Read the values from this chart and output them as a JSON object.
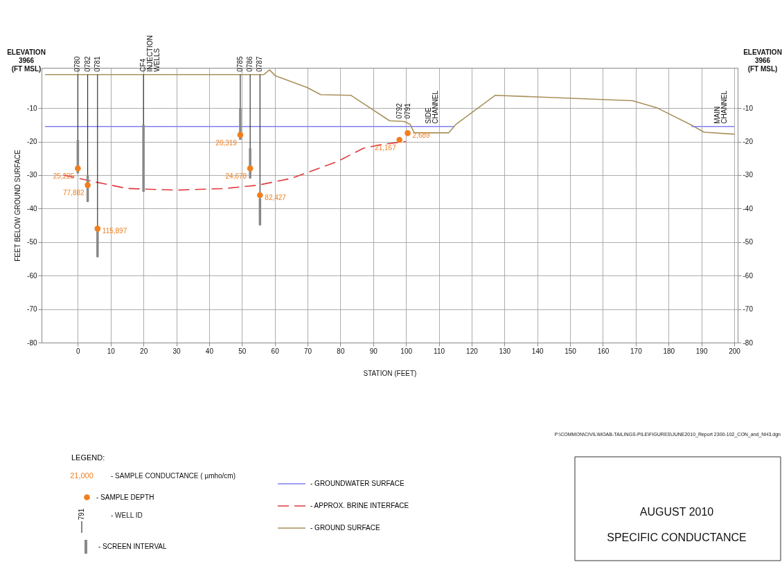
{
  "chart_data": {
    "type": "line",
    "title": "AUGUST 2010",
    "subtitle": "SPECIFIC CONDUCTANCE",
    "xlabel": "STATION (FEET)",
    "ylabel": "FEET BELOW GROUND SURFACE",
    "legend_title": "LEGEND:",
    "xlim": [
      -10,
      200
    ],
    "xticks": [
      0,
      10,
      20,
      30,
      40,
      50,
      60,
      70,
      80,
      90,
      100,
      110,
      120,
      130,
      140,
      150,
      160,
      170,
      180,
      190,
      200
    ],
    "ylim": [
      -80,
      2
    ],
    "yticks": [
      -80,
      -70,
      -60,
      -50,
      -40,
      -30,
      -20,
      -10
    ],
    "y2lim": [
      -80,
      2
    ],
    "y2ticks": [
      -80,
      -70,
      -60,
      -50,
      -40,
      -30,
      -20,
      -10
    ],
    "grid": true,
    "legend": "bottom",
    "series": [
      {
        "name": "- GROUNDWATER SURFACE",
        "color": "#7f7ff0",
        "x": [
          -10,
          114.5
        ],
        "values": [
          -15.5,
          -15.5
        ]
      },
      {
        "name": "- APPROX. BRINE INTERFACE",
        "color": "#e0393e",
        "line_style": "dashed",
        "x": [
          -4.4,
          5,
          15,
          30,
          45,
          55,
          65,
          72,
          79,
          87,
          93,
          100
        ],
        "values": [
          -30,
          -32,
          -34,
          -34.5,
          -34,
          -33,
          -31,
          -28.5,
          -26,
          -22,
          -20.8,
          -20
        ]
      },
      {
        "name": "- GROUND SURFACE",
        "color": "#a8905a",
        "x": [
          -10,
          56.7,
          58.4,
          60.2,
          69.9,
          74,
          83.2,
          95,
          99.4,
          101.3,
          102.5,
          113,
          115.3,
          127.2,
          169,
          176.6,
          187,
          190.8,
          200
        ],
        "values": [
          0,
          0,
          1.4,
          -0.4,
          -3.9,
          -6,
          -6.2,
          -13.8,
          -14,
          -14.9,
          -17.4,
          -17.4,
          -14.8,
          -6.2,
          -7.8,
          -10,
          -15.1,
          -17.2,
          -17.8
        ]
      },
      {
        "color": "#7f7ff0",
        "x": [
          187,
          200
        ],
        "values": [
          -15.5,
          -15.5
        ]
      },
      {
        "name": "- SCREEN INTERVAL",
        "type": "bar",
        "color": "#888888",
        "x": [
          0,
          3,
          6,
          20,
          49.5,
          52.5,
          55.5
        ],
        "base": [
          -29.5,
          -38,
          -54.5,
          -35,
          -19.5,
          -31,
          -45
        ],
        "values": [
          10,
          8,
          8,
          20,
          9.5,
          9,
          8
        ]
      },
      {
        "name": "- SAMPLE DEPTH",
        "type": "scatter",
        "color": "#f07f1e",
        "marker": "circle",
        "x": [
          0,
          3,
          6,
          49.5,
          52.5,
          55.5,
          98,
          100.5
        ],
        "values": [
          -28,
          -33,
          -46,
          -18,
          -28,
          -36,
          -19.5,
          -17.5
        ]
      }
    ],
    "annotations": [
      {
        "text": "0780",
        "x": 0,
        "y": 0
      },
      {
        "text": "0782",
        "x": 3,
        "y": 0
      },
      {
        "text": "0781",
        "x": 6,
        "y": 0
      },
      {
        "text": "CF4\nINJECTION\nWELLS",
        "x": 20,
        "y": 0
      },
      {
        "text": "0785",
        "x": 49.5,
        "y": 0
      },
      {
        "text": "0786",
        "x": 52.5,
        "y": 0
      },
      {
        "text": "0787",
        "x": 55.5,
        "y": 0
      },
      {
        "text": "0792",
        "x": 98,
        "y": -14
      },
      {
        "text": "0791",
        "x": 100.5,
        "y": -14
      },
      {
        "text": "SIDE\nCHANNEL",
        "x": 107,
        "y": -15.5
      },
      {
        "text": "MAIN\nCHANNEL",
        "x": 195,
        "y": -15.5
      },
      {
        "text": "25,225",
        "x": 0,
        "y": -28
      },
      {
        "text": "77,882",
        "x": 3,
        "y": -33
      },
      {
        "text": "115,897",
        "x": 6,
        "y": -46
      },
      {
        "text": "20,319",
        "x": 49.5,
        "y": -18
      },
      {
        "text": "24,678",
        "x": 52.5,
        "y": -28
      },
      {
        "text": "82,427",
        "x": 55.5,
        "y": -36
      },
      {
        "text": "21,167",
        "x": 98,
        "y": -19.5
      },
      {
        "text": "2,689",
        "x": 100.5,
        "y": -17.5
      },
      "ELEVATION\n3966\n(FT MSL)",
      "ELEVATION\n3966\n(FT MSL)",
      "21,000",
      "- SAMPLE CONDUCTANCE ( µmho/cm)",
      "791",
      "- WELL ID",
      "P:\\COMMON\\CIVIL\\MOAB-TAILINGS-PILE\\FIGURES\\JUNE2010_Report 2300-102_CON_and_NH3.dgn"
    ]
  }
}
